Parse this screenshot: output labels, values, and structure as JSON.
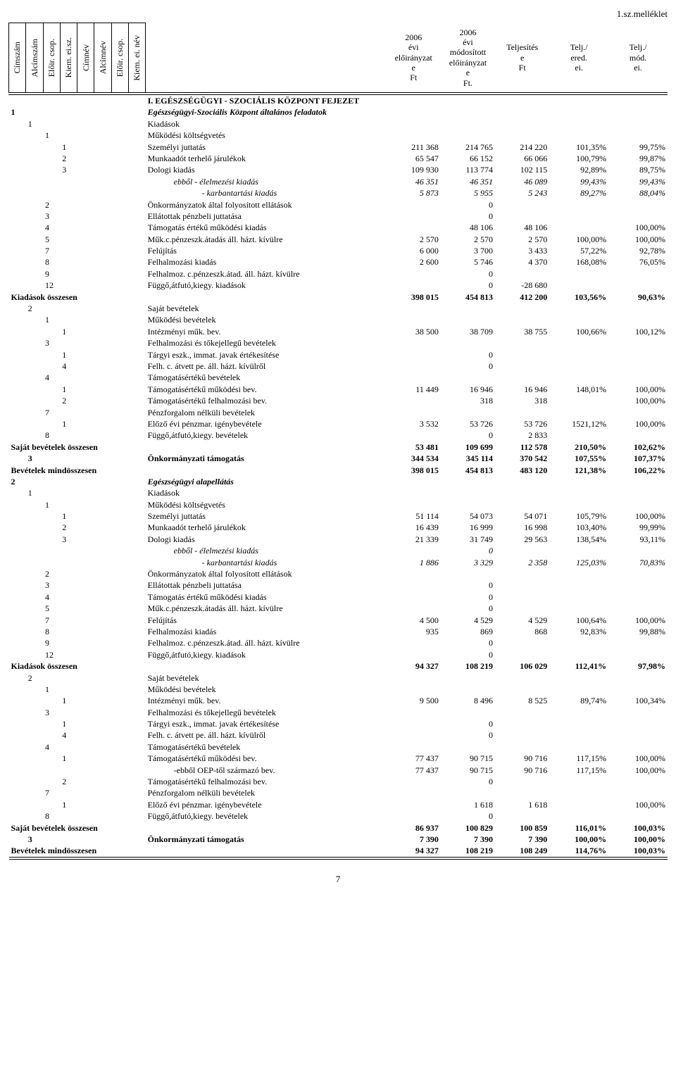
{
  "page_label": "1.sz.melléklet",
  "page_number": "7",
  "vertical_headers": [
    "Címszám",
    "Alcímszám",
    "Előir. csop.",
    "Kiem. ei.sz.",
    "Címnév",
    "Alcímnév",
    "Előir. csop.",
    "Kiem. ei. név"
  ],
  "col_headers": {
    "c1": "2006 évi előirányzat e Ft",
    "c2": "2006 évi módosított előirányzat e Ft.",
    "c3": "Teljesítés e Ft",
    "c4": "Telj./ ered. ei.",
    "c5": "Telj./ mód. ei."
  },
  "rows": [
    {
      "cols": [
        "",
        "",
        "",
        "",
        "",
        "",
        "",
        "",
        ""
      ],
      "label": "I. EGÉSZSÉGÜGYI - SZOCIÁLIS KÖZPONT FEJEZET",
      "v": [
        "",
        "",
        "",
        "",
        ""
      ],
      "bold": true
    },
    {
      "cols": [
        "1",
        "",
        "",
        "",
        "",
        "",
        "",
        "",
        ""
      ],
      "label": "Egészségügyi-Szociális Központ általános feladatok",
      "v": [
        "",
        "",
        "",
        "",
        ""
      ],
      "bold": true,
      "italic": true
    },
    {
      "cols": [
        "",
        "1",
        "",
        "",
        "",
        "",
        "",
        "",
        ""
      ],
      "label": "Kiadások",
      "v": [
        "",
        "",
        "",
        "",
        ""
      ]
    },
    {
      "cols": [
        "",
        "",
        "1",
        "",
        "",
        "",
        "",
        "",
        ""
      ],
      "label": "Működési költségvetés",
      "v": [
        "",
        "",
        "",
        "",
        ""
      ]
    },
    {
      "cols": [
        "",
        "",
        "",
        "1",
        "",
        "",
        "",
        "",
        ""
      ],
      "label": "Személyi juttatás",
      "v": [
        "211 368",
        "214 765",
        "214 220",
        "101,35%",
        "99,75%"
      ]
    },
    {
      "cols": [
        "",
        "",
        "",
        "2",
        "",
        "",
        "",
        "",
        ""
      ],
      "label": "Munkaadót terhelő járulékok",
      "v": [
        "65 547",
        "66 152",
        "66 066",
        "100,79%",
        "99,87%"
      ]
    },
    {
      "cols": [
        "",
        "",
        "",
        "3",
        "",
        "",
        "",
        "",
        ""
      ],
      "label": "Dologi kiadás",
      "v": [
        "109 930",
        "113 774",
        "102 115",
        "92,89%",
        "89,75%"
      ]
    },
    {
      "cols": [
        "",
        "",
        "",
        "",
        "",
        "",
        "",
        "",
        ""
      ],
      "label": "ebből    - élelmezési kiadás",
      "v": [
        "46 351",
        "46 351",
        "46 089",
        "99,43%",
        "99,43%"
      ],
      "italic": true,
      "indent": true
    },
    {
      "cols": [
        "",
        "",
        "",
        "",
        "",
        "",
        "",
        "",
        ""
      ],
      "label": "- karbantartási kiadás",
      "v": [
        "5 873",
        "5 955",
        "5 243",
        "89,27%",
        "88,04%"
      ],
      "italic": true,
      "indent2": true
    },
    {
      "cols": [
        "",
        "",
        "2",
        "",
        "",
        "",
        "",
        "",
        ""
      ],
      "label": "Önkormányzatok által folyosított ellátások",
      "v": [
        "",
        "0",
        "",
        "",
        ""
      ]
    },
    {
      "cols": [
        "",
        "",
        "3",
        "",
        "",
        "",
        "",
        "",
        ""
      ],
      "label": "Ellátottak pénzbeli  juttatása",
      "v": [
        "",
        "0",
        "",
        "",
        ""
      ]
    },
    {
      "cols": [
        "",
        "",
        "4",
        "",
        "",
        "",
        "",
        "",
        ""
      ],
      "label": "Támogatás értékű működési kiadás",
      "v": [
        "",
        "48 106",
        "48 106",
        "",
        "100,00%"
      ]
    },
    {
      "cols": [
        "",
        "",
        "5",
        "",
        "",
        "",
        "",
        "",
        ""
      ],
      "label": "Műk.c.pénzeszk.átadás áll. házt. kívülre",
      "v": [
        "2 570",
        "2 570",
        "2 570",
        "100,00%",
        "100,00%"
      ]
    },
    {
      "cols": [
        "",
        "",
        "7",
        "",
        "",
        "",
        "",
        "",
        ""
      ],
      "label": "Felújítás",
      "v": [
        "6 000",
        "3 700",
        "3 433",
        "57,22%",
        "92,78%"
      ]
    },
    {
      "cols": [
        "",
        "",
        "8",
        "",
        "",
        "",
        "",
        "",
        ""
      ],
      "label": "Felhalmozási kiadás",
      "v": [
        "2 600",
        "5 746",
        "4 370",
        "168,08%",
        "76,05%"
      ]
    },
    {
      "cols": [
        "",
        "",
        "9",
        "",
        "",
        "",
        "",
        "",
        ""
      ],
      "label": "Felhalmoz. c.pénzeszk.átad. áll. házt. kívülre",
      "v": [
        "",
        "0",
        "",
        "",
        ""
      ]
    },
    {
      "cols": [
        "",
        "",
        "12",
        "",
        "",
        "",
        "",
        "",
        ""
      ],
      "label": "Függő,átfutó,kiegy. kiadások",
      "v": [
        "",
        "0",
        "-28 680",
        "",
        ""
      ]
    },
    {
      "cols": [
        "",
        "",
        "",
        "",
        "",
        "",
        "",
        "",
        ""
      ],
      "label": "Kiadások összesen",
      "v": [
        "398 015",
        "454 813",
        "412 200",
        "103,56%",
        "90,63%"
      ],
      "bold": true,
      "fullleft": true
    },
    {
      "cols": [
        "",
        "2",
        "",
        "",
        "",
        "",
        "",
        "",
        ""
      ],
      "label": "Saját bevételek",
      "v": [
        "",
        "",
        "",
        "",
        ""
      ]
    },
    {
      "cols": [
        "",
        "",
        "1",
        "",
        "",
        "",
        "",
        "",
        ""
      ],
      "label": "Működési bevételek",
      "v": [
        "",
        "",
        "",
        "",
        ""
      ]
    },
    {
      "cols": [
        "",
        "",
        "",
        "1",
        "",
        "",
        "",
        "",
        ""
      ],
      "label": "Intézményi műk. bev.",
      "v": [
        "38 500",
        "38 709",
        "38 755",
        "100,66%",
        "100,12%"
      ]
    },
    {
      "cols": [
        "",
        "",
        "3",
        "",
        "",
        "",
        "",
        "",
        ""
      ],
      "label": "Felhalmozási és tőkejellegű bevételek",
      "v": [
        "",
        "",
        "",
        "",
        ""
      ]
    },
    {
      "cols": [
        "",
        "",
        "",
        "1",
        "",
        "",
        "",
        "",
        ""
      ],
      "label": "Tárgyi eszk., immat. javak értékesítése",
      "v": [
        "",
        "0",
        "",
        "",
        ""
      ]
    },
    {
      "cols": [
        "",
        "",
        "",
        "4",
        "",
        "",
        "",
        "",
        ""
      ],
      "label": "Felh. c. átvett pe. áll. házt. kívülről",
      "v": [
        "",
        "0",
        "",
        "",
        ""
      ]
    },
    {
      "cols": [
        "",
        "",
        "4",
        "",
        "",
        "",
        "",
        "",
        ""
      ],
      "label": "Támogatásértékű bevételek",
      "v": [
        "",
        "",
        "",
        "",
        ""
      ]
    },
    {
      "cols": [
        "",
        "",
        "",
        "1",
        "",
        "",
        "",
        "",
        ""
      ],
      "label": "Támogatásértékű működési bev.",
      "v": [
        "11 449",
        "16 946",
        "16 946",
        "148,01%",
        "100,00%"
      ]
    },
    {
      "cols": [
        "",
        "",
        "",
        "2",
        "",
        "",
        "",
        "",
        ""
      ],
      "label": "Támogatásértékű felhalmozási bev.",
      "v": [
        "",
        "318",
        "318",
        "",
        "100,00%"
      ]
    },
    {
      "cols": [
        "",
        "",
        "7",
        "",
        "",
        "",
        "",
        "",
        ""
      ],
      "label": "Pénzforgalom nélküli bevételek",
      "v": [
        "",
        "",
        "",
        "",
        ""
      ]
    },
    {
      "cols": [
        "",
        "",
        "",
        "1",
        "",
        "",
        "",
        "",
        ""
      ],
      "label": "Előző évi pénzmar. igénybevétele",
      "v": [
        "3 532",
        "53 726",
        "53 726",
        "1521,12%",
        "100,00%"
      ]
    },
    {
      "cols": [
        "",
        "",
        "8",
        "",
        "",
        "",
        "",
        "",
        ""
      ],
      "label": "Függő,átfutó,kiegy. bevételek",
      "v": [
        "",
        "0",
        "2 833",
        "",
        ""
      ]
    },
    {
      "cols": [
        "",
        "",
        "",
        "",
        "",
        "",
        "",
        "",
        ""
      ],
      "label": "Saját bevételek összesen",
      "v": [
        "53 481",
        "109 699",
        "112 578",
        "210,50%",
        "102,62%"
      ],
      "bold": true,
      "fullleft": true
    },
    {
      "cols": [
        "",
        "3",
        "",
        "",
        "",
        "",
        "",
        "",
        ""
      ],
      "label": "Önkormányzati támogatás",
      "v": [
        "344 534",
        "345 114",
        "370 542",
        "107,55%",
        "107,37%"
      ],
      "bold": true
    },
    {
      "cols": [
        "",
        "",
        "",
        "",
        "",
        "",
        "",
        "",
        ""
      ],
      "label": "Bevételek mindösszesen",
      "v": [
        "398 015",
        "454 813",
        "483 120",
        "121,38%",
        "106,22%"
      ],
      "bold": true,
      "fullleft": true
    },
    {
      "cols": [
        "2",
        "",
        "",
        "",
        "",
        "",
        "",
        "",
        ""
      ],
      "label": "Egészségügyi alapellátás",
      "v": [
        "",
        "",
        "",
        "",
        ""
      ],
      "bold": true,
      "italic": true
    },
    {
      "cols": [
        "",
        "1",
        "",
        "",
        "",
        "",
        "",
        "",
        ""
      ],
      "label": "Kiadások",
      "v": [
        "",
        "",
        "",
        "",
        ""
      ]
    },
    {
      "cols": [
        "",
        "",
        "1",
        "",
        "",
        "",
        "",
        "",
        ""
      ],
      "label": "Működési költségvetés",
      "v": [
        "",
        "",
        "",
        "",
        ""
      ]
    },
    {
      "cols": [
        "",
        "",
        "",
        "1",
        "",
        "",
        "",
        "",
        ""
      ],
      "label": "Személyi juttatás",
      "v": [
        "51 114",
        "54 073",
        "54 071",
        "105,79%",
        "100,00%"
      ]
    },
    {
      "cols": [
        "",
        "",
        "",
        "2",
        "",
        "",
        "",
        "",
        ""
      ],
      "label": "Munkaadót terhelő járulékok",
      "v": [
        "16 439",
        "16 999",
        "16 998",
        "103,40%",
        "99,99%"
      ]
    },
    {
      "cols": [
        "",
        "",
        "",
        "3",
        "",
        "",
        "",
        "",
        ""
      ],
      "label": "Dologi kiadás",
      "v": [
        "21 339",
        "31 749",
        "29 563",
        "138,54%",
        "93,11%"
      ]
    },
    {
      "cols": [
        "",
        "",
        "",
        "",
        "",
        "",
        "",
        "",
        ""
      ],
      "label": "ebből    - élelmezési kiadás",
      "v": [
        "",
        "0",
        "",
        "",
        ""
      ],
      "italic": true,
      "indent": true
    },
    {
      "cols": [
        "",
        "",
        "",
        "",
        "",
        "",
        "",
        "",
        ""
      ],
      "label": "- karbantartási kiadás",
      "v": [
        "1 886",
        "3 329",
        "2 358",
        "125,03%",
        "70,83%"
      ],
      "italic": true,
      "indent2": true
    },
    {
      "cols": [
        "",
        "",
        "2",
        "",
        "",
        "",
        "",
        "",
        ""
      ],
      "label": "Önkormányzatok által folyosított ellátások",
      "v": [
        "",
        "",
        "",
        "",
        ""
      ]
    },
    {
      "cols": [
        "",
        "",
        "3",
        "",
        "",
        "",
        "",
        "",
        ""
      ],
      "label": "Ellátottak pénzbeli  juttatása",
      "v": [
        "",
        "0",
        "",
        "",
        ""
      ]
    },
    {
      "cols": [
        "",
        "",
        "4",
        "",
        "",
        "",
        "",
        "",
        ""
      ],
      "label": "Támogatás értékű működési kiadás",
      "v": [
        "",
        "0",
        "",
        "",
        ""
      ]
    },
    {
      "cols": [
        "",
        "",
        "5",
        "",
        "",
        "",
        "",
        "",
        ""
      ],
      "label": "Műk.c.pénzeszk.átadás áll. házt. kívülre",
      "v": [
        "",
        "0",
        "",
        "",
        ""
      ]
    },
    {
      "cols": [
        "",
        "",
        "7",
        "",
        "",
        "",
        "",
        "",
        ""
      ],
      "label": "Felújítás",
      "v": [
        "4 500",
        "4 529",
        "4 529",
        "100,64%",
        "100,00%"
      ]
    },
    {
      "cols": [
        "",
        "",
        "8",
        "",
        "",
        "",
        "",
        "",
        ""
      ],
      "label": "Felhalmozási kiadás",
      "v": [
        "935",
        "869",
        "868",
        "92,83%",
        "99,88%"
      ]
    },
    {
      "cols": [
        "",
        "",
        "9",
        "",
        "",
        "",
        "",
        "",
        ""
      ],
      "label": "Felhalmoz. c.pénzeszk.átad. áll. házt. kívülre",
      "v": [
        "",
        "0",
        "",
        "",
        ""
      ]
    },
    {
      "cols": [
        "",
        "",
        "12",
        "",
        "",
        "",
        "",
        "",
        ""
      ],
      "label": "Függő,átfutó,kiegy. kiadások",
      "v": [
        "",
        "0",
        "",
        "",
        ""
      ]
    },
    {
      "cols": [
        "",
        "",
        "",
        "",
        "",
        "",
        "",
        "",
        ""
      ],
      "label": "Kiadások összesen",
      "v": [
        "94 327",
        "108 219",
        "106 029",
        "112,41%",
        "97,98%"
      ],
      "bold": true,
      "fullleft": true
    },
    {
      "cols": [
        "",
        "2",
        "",
        "",
        "",
        "",
        "",
        "",
        ""
      ],
      "label": "Saját bevételek",
      "v": [
        "",
        "",
        "",
        "",
        ""
      ]
    },
    {
      "cols": [
        "",
        "",
        "1",
        "",
        "",
        "",
        "",
        "",
        ""
      ],
      "label": "Működési bevételek",
      "v": [
        "",
        "",
        "",
        "",
        ""
      ]
    },
    {
      "cols": [
        "",
        "",
        "",
        "1",
        "",
        "",
        "",
        "",
        ""
      ],
      "label": "Intézményi műk. bev.",
      "v": [
        "9 500",
        "8 496",
        "8 525",
        "89,74%",
        "100,34%"
      ]
    },
    {
      "cols": [
        "",
        "",
        "3",
        "",
        "",
        "",
        "",
        "",
        ""
      ],
      "label": "Felhalmozási és tőkejellegű bevételek",
      "v": [
        "",
        "",
        "",
        "",
        ""
      ]
    },
    {
      "cols": [
        "",
        "",
        "",
        "1",
        "",
        "",
        "",
        "",
        ""
      ],
      "label": "Tárgyi eszk., immat. javak értékesítése",
      "v": [
        "",
        "0",
        "",
        "",
        ""
      ]
    },
    {
      "cols": [
        "",
        "",
        "",
        "4",
        "",
        "",
        "",
        "",
        ""
      ],
      "label": "Felh. c. átvett pe. áll. házt. kívülről",
      "v": [
        "",
        "0",
        "",
        "",
        ""
      ]
    },
    {
      "cols": [
        "",
        "",
        "4",
        "",
        "",
        "",
        "",
        "",
        ""
      ],
      "label": "Támogatásértékű bevételek",
      "v": [
        "",
        "",
        "",
        "",
        ""
      ]
    },
    {
      "cols": [
        "",
        "",
        "",
        "1",
        "",
        "",
        "",
        "",
        ""
      ],
      "label": "Támogatásértékű működési bev.",
      "v": [
        "77 437",
        "90 715",
        "90 716",
        "117,15%",
        "100,00%"
      ]
    },
    {
      "cols": [
        "",
        "",
        "",
        "",
        "",
        "",
        "",
        "",
        ""
      ],
      "label": "-ebből OEP-től származó bev.",
      "v": [
        "77 437",
        "90 715",
        "90 716",
        "117,15%",
        "100,00%"
      ],
      "indent": true
    },
    {
      "cols": [
        "",
        "",
        "",
        "2",
        "",
        "",
        "",
        "",
        ""
      ],
      "label": "Támogatásértékű felhalmozási bev.",
      "v": [
        "",
        "0",
        "",
        "",
        ""
      ]
    },
    {
      "cols": [
        "",
        "",
        "7",
        "",
        "",
        "",
        "",
        "",
        ""
      ],
      "label": "Pénzforgalom nélküli bevételek",
      "v": [
        "",
        "",
        "",
        "",
        ""
      ]
    },
    {
      "cols": [
        "",
        "",
        "",
        "1",
        "",
        "",
        "",
        "",
        ""
      ],
      "label": "Előző évi pénzmar. igénybevétele",
      "v": [
        "",
        "1 618",
        "1 618",
        "",
        "100,00%"
      ]
    },
    {
      "cols": [
        "",
        "",
        "8",
        "",
        "",
        "",
        "",
        "",
        ""
      ],
      "label": "Függő,átfutó,kiegy. bevételek",
      "v": [
        "",
        "0",
        "",
        "",
        ""
      ]
    },
    {
      "cols": [
        "",
        "",
        "",
        "",
        "",
        "",
        "",
        "",
        ""
      ],
      "label": "Saját bevételek összesen",
      "v": [
        "86 937",
        "100 829",
        "100 859",
        "116,01%",
        "100,03%"
      ],
      "bold": true,
      "fullleft": true
    },
    {
      "cols": [
        "",
        "3",
        "",
        "",
        "",
        "",
        "",
        "",
        ""
      ],
      "label": "Önkormányzati támogatás",
      "v": [
        "7 390",
        "7 390",
        "7 390",
        "100,00%",
        "100,00%"
      ],
      "bold": true
    },
    {
      "cols": [
        "",
        "",
        "",
        "",
        "",
        "",
        "",
        "",
        ""
      ],
      "label": "Bevételek mindösszesen",
      "v": [
        "94 327",
        "108 219",
        "108 249",
        "114,76%",
        "100,03%"
      ],
      "bold": true,
      "fullleft": true,
      "last": true
    }
  ]
}
